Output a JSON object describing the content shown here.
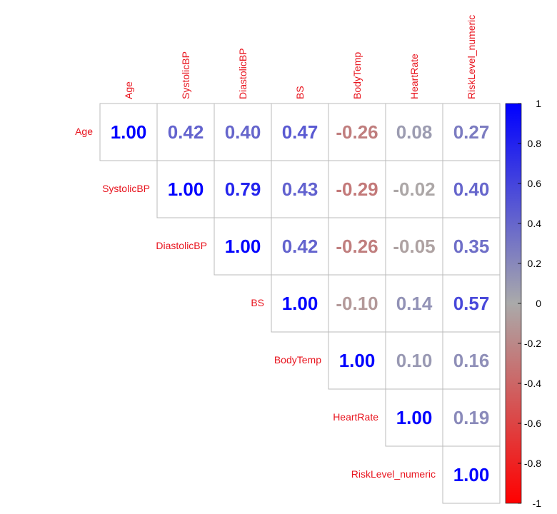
{
  "chart_data": {
    "type": "heatmap",
    "variant": "correlation-matrix-upper",
    "variables": [
      "Age",
      "SystolicBP",
      "DiastolicBP",
      "BS",
      "BodyTemp",
      "HeartRate",
      "RiskLevel_numeric"
    ],
    "matrix": [
      [
        1.0,
        0.42,
        0.4,
        0.47,
        -0.26,
        0.08,
        0.27
      ],
      [
        null,
        1.0,
        0.79,
        0.43,
        -0.29,
        -0.02,
        0.4
      ],
      [
        null,
        null,
        1.0,
        0.42,
        -0.26,
        -0.05,
        0.35
      ],
      [
        null,
        null,
        null,
        1.0,
        -0.1,
        0.14,
        0.57
      ],
      [
        null,
        null,
        null,
        null,
        1.0,
        0.1,
        0.16
      ],
      [
        null,
        null,
        null,
        null,
        null,
        1.0,
        0.19
      ],
      [
        null,
        null,
        null,
        null,
        null,
        null,
        1.0
      ]
    ],
    "display_values": [
      [
        "1.00",
        "0.42",
        "0.40",
        "0.47",
        "-0.26",
        "0.08",
        "0.27"
      ],
      [
        null,
        "1.00",
        "0.79",
        "0.43",
        "-0.29",
        "-0.02",
        "0.40"
      ],
      [
        null,
        null,
        "1.00",
        "0.42",
        "-0.26",
        "-0.05",
        "0.35"
      ],
      [
        null,
        null,
        null,
        "1.00",
        "-0.10",
        "0.14",
        "0.57"
      ],
      [
        null,
        null,
        null,
        null,
        "1.00",
        "0.10",
        "0.16"
      ],
      [
        null,
        null,
        null,
        null,
        null,
        "1.00",
        "0.19"
      ],
      [
        null,
        null,
        null,
        null,
        null,
        null,
        "1.00"
      ]
    ],
    "colorbar": {
      "range": [
        -1,
        1
      ],
      "ticks": [
        "1",
        "0.8",
        "0.6",
        "0.4",
        "0.2",
        "0",
        "-0.2",
        "-0.4",
        "-0.6",
        "-0.8",
        "-1"
      ],
      "position": "right"
    },
    "colors": {
      "positive": "#0000FF",
      "neutral": "#AAAAAA",
      "negative": "#FF0000",
      "label": "#E8141E",
      "grid": "#BBBBBB"
    }
  }
}
